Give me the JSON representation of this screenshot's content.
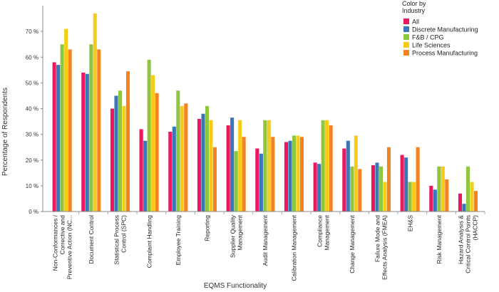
{
  "chart_data": {
    "type": "bar",
    "xlabel": "EQMS Functionality",
    "ylabel": "Percentage of Respondents",
    "ylim": [
      0,
      0.8
    ],
    "yticks": [
      0,
      0.1,
      0.2,
      0.3,
      0.4,
      0.5,
      0.6,
      0.7
    ],
    "ytick_labels": [
      "0 %",
      "10 %",
      "20 %",
      "30 %",
      "40 %",
      "50 %",
      "60 %",
      "70 %"
    ],
    "legend_title": [
      "Color by",
      "Industry"
    ],
    "legend_position": "top-right",
    "grid": false,
    "categories": [
      [
        "Non-Conformances /",
        "Corrective and",
        "Preventive Action (NC..."
      ],
      [
        "Document Control"
      ],
      [
        "Statistical Process",
        "Control (SPC)"
      ],
      [
        "Complaint Handling"
      ],
      [
        "Employee Training"
      ],
      [
        "Reporting"
      ],
      [
        "Supplier Quality",
        "Management"
      ],
      [
        "Audit Management"
      ],
      [
        "Calibration Management"
      ],
      [
        "Compliance",
        "Management"
      ],
      [
        "Change Management"
      ],
      [
        "Failure Mode and",
        "Effects Analysis (FMEA)"
      ],
      [
        "EH&S"
      ],
      [
        "Risk Management"
      ],
      [
        "Hazard Analysis &",
        "Critical Control Points",
        "(HACCP)"
      ]
    ],
    "series": [
      {
        "name": "All",
        "color": "#e8195f",
        "values": [
          0.58,
          0.54,
          0.4,
          0.32,
          0.31,
          0.36,
          0.335,
          0.245,
          0.27,
          0.19,
          0.245,
          0.18,
          0.22,
          0.1,
          0.07
        ]
      },
      {
        "name": "Discrete Manufacturing",
        "color": "#3b76b8",
        "values": [
          0.57,
          0.535,
          0.45,
          0.275,
          0.33,
          0.38,
          0.365,
          0.225,
          0.275,
          0.185,
          0.275,
          0.19,
          0.21,
          0.085,
          0.03
        ]
      },
      {
        "name": "F&B / CPG",
        "color": "#8fc63f",
        "values": [
          0.65,
          0.65,
          0.47,
          0.59,
          0.47,
          0.41,
          0.235,
          0.355,
          0.295,
          0.355,
          0.175,
          0.175,
          0.115,
          0.175,
          0.175
        ]
      },
      {
        "name": "Life Sciences",
        "color": "#f5cc1a",
        "values": [
          0.71,
          0.77,
          0.41,
          0.53,
          0.41,
          0.355,
          0.355,
          0.355,
          0.295,
          0.355,
          0.295,
          0.115,
          0.115,
          0.175,
          0.115
        ]
      },
      {
        "name": "Process Manufacturing",
        "color": "#f58220",
        "values": [
          0.63,
          0.63,
          0.545,
          0.46,
          0.42,
          0.25,
          0.29,
          0.29,
          0.29,
          0.335,
          0.165,
          0.25,
          0.25,
          0.125,
          0.08
        ]
      }
    ]
  }
}
